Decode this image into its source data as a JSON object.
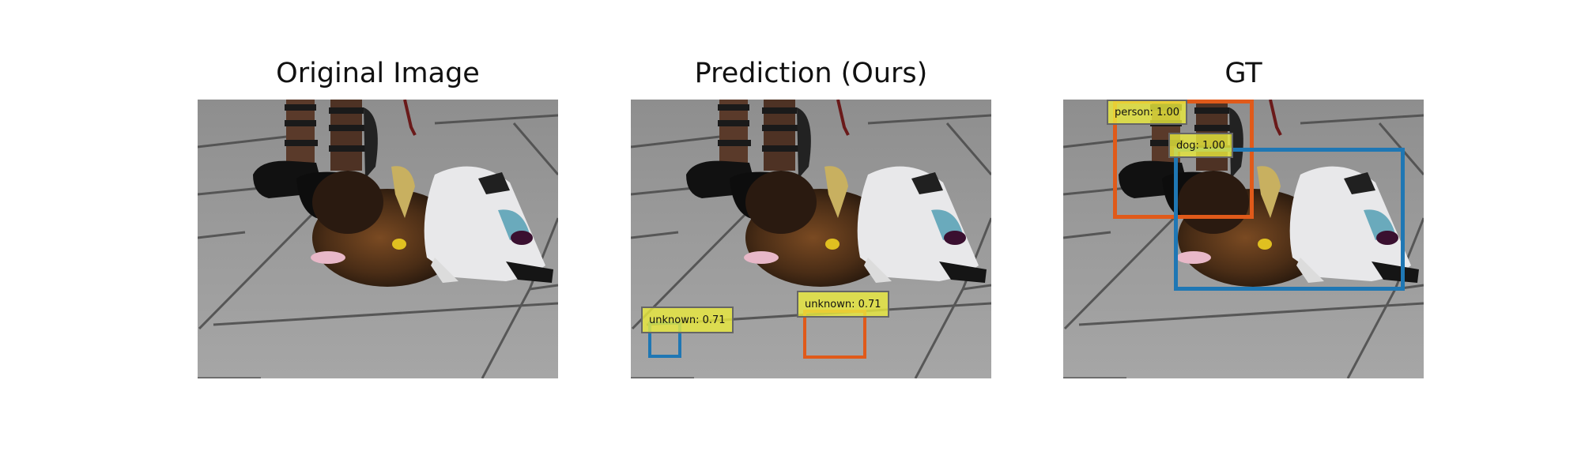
{
  "panels": [
    {
      "title": "Original Image"
    },
    {
      "title": "Prediction (Ours)"
    },
    {
      "title": "GT"
    }
  ],
  "prediction": {
    "detections": [
      {
        "label": "unknown: 0.71",
        "color": "#1f77b4"
      },
      {
        "label": "unknown: 0.71",
        "color": "#e05a1a"
      }
    ]
  },
  "ground_truth": {
    "detections": [
      {
        "label": "person: 1.00",
        "color": "#e05a1a"
      },
      {
        "label": "dog: 1.00",
        "color": "#1f77b4"
      }
    ]
  }
}
